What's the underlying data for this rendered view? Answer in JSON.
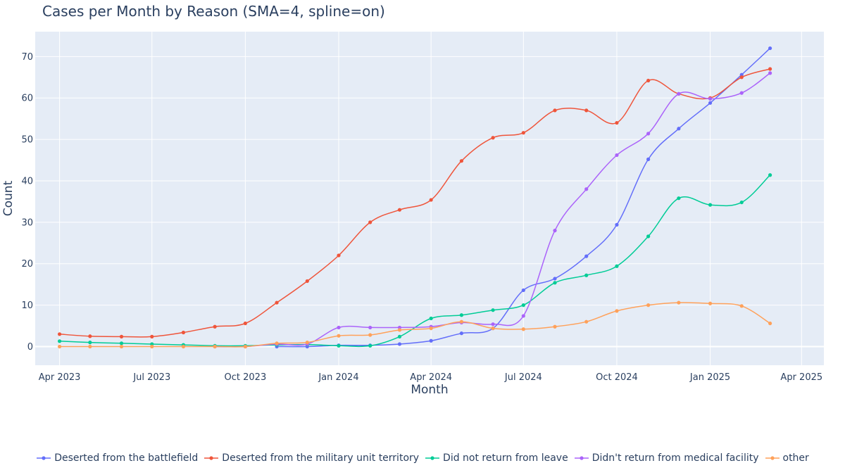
{
  "chart_data": {
    "type": "line",
    "title": "Cases per Month by Reason (SMA=4, spline=on)",
    "xlabel": "Month",
    "ylabel": "Count",
    "x": [
      "2023-04",
      "2023-05",
      "2023-06",
      "2023-07",
      "2023-08",
      "2023-09",
      "2023-10",
      "2023-11",
      "2023-12",
      "2024-01",
      "2024-02",
      "2024-03",
      "2024-04",
      "2024-05",
      "2024-06",
      "2024-07",
      "2024-08",
      "2024-09",
      "2024-10",
      "2024-11",
      "2024-12",
      "2025-01",
      "2025-02",
      "2025-03"
    ],
    "x_ticks": [
      {
        "value": "2023-04",
        "label": "Apr 2023"
      },
      {
        "value": "2023-07",
        "label": "Jul 2023"
      },
      {
        "value": "2023-10",
        "label": "Oct 2023"
      },
      {
        "value": "2024-01",
        "label": "Jan 2024"
      },
      {
        "value": "2024-04",
        "label": "Apr 2024"
      },
      {
        "value": "2024-07",
        "label": "Jul 2024"
      },
      {
        "value": "2024-10",
        "label": "Oct 2024"
      },
      {
        "value": "2025-01",
        "label": "Jan 2025"
      },
      {
        "value": "2025-04",
        "label": "Apr 2025"
      }
    ],
    "xlim": [
      "2023-03-08",
      "2025-04-23"
    ],
    "y_ticks": [
      0,
      10,
      20,
      30,
      40,
      50,
      60,
      70
    ],
    "ylim": [
      -4.5,
      76
    ],
    "grid": true,
    "legend_position": "bottom-center",
    "series": [
      {
        "name": "Deserted from the battlefield",
        "color": "#636efa",
        "values": [
          null,
          null,
          null,
          null,
          null,
          null,
          null,
          0,
          0,
          0.3,
          0.3,
          0.6,
          1.4,
          3.2,
          4.4,
          13.6,
          16.4,
          21.8,
          29.4,
          45.2,
          52.6,
          58.8,
          65.6,
          72
        ]
      },
      {
        "name": "Deserted from the military unit territory",
        "color": "#ef553b",
        "values": [
          3,
          2.5,
          2.4,
          2.4,
          3.4,
          4.8,
          5.6,
          10.6,
          15.8,
          22,
          30,
          33,
          35.4,
          44.8,
          50.4,
          51.6,
          57,
          57,
          54,
          64.2,
          61,
          60,
          65,
          67
        ]
      },
      {
        "name": "Did not return from leave",
        "color": "#00cc96",
        "values": [
          1.3,
          1,
          0.8,
          0.6,
          0.4,
          0.2,
          0.2,
          0.4,
          0.5,
          0.2,
          0.2,
          2.4,
          6.8,
          7.6,
          8.8,
          10,
          15.4,
          17.2,
          19.4,
          26.6,
          35.8,
          34.2,
          34.8,
          41.4
        ]
      },
      {
        "name": "Didn't return from medical facility",
        "color": "#ab63fa",
        "values": [
          null,
          null,
          null,
          null,
          null,
          0,
          0,
          0.6,
          0.6,
          4.6,
          4.6,
          4.6,
          4.8,
          5.8,
          5.4,
          7.4,
          28,
          38,
          46.2,
          51.4,
          61,
          59.8,
          61.2,
          66
        ]
      },
      {
        "name": "other",
        "color": "#ffa15a",
        "values": [
          0,
          0,
          0,
          0,
          0,
          0,
          0,
          0.8,
          1,
          2.6,
          2.8,
          4,
          4.4,
          6,
          4.4,
          4.2,
          4.8,
          6,
          8.6,
          10,
          10.6,
          10.4,
          9.8,
          5.6
        ]
      }
    ]
  }
}
